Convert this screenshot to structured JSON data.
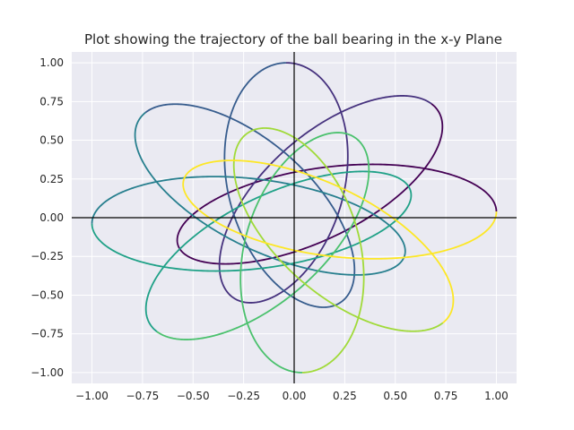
{
  "chart_data": {
    "type": "line",
    "title": "Plot showing the trajectory of the ball bearing in the x-y Plane",
    "xlabel": "",
    "ylabel": "",
    "xlim": [
      -1.1,
      1.1
    ],
    "ylim": [
      -1.07,
      1.07
    ],
    "xticks": [
      -1.0,
      -0.75,
      -0.5,
      -0.25,
      0.0,
      0.25,
      0.5,
      0.75,
      1.0
    ],
    "xtick_labels": [
      "−1.00",
      "−0.75",
      "−0.50",
      "−0.25",
      "0.00",
      "0.25",
      "0.50",
      "0.75",
      "1.00"
    ],
    "yticks": [
      -1.0,
      -0.75,
      -0.5,
      -0.25,
      0.0,
      0.25,
      0.5,
      0.75,
      1.0
    ],
    "ytick_labels": [
      "−1.00",
      "−0.75",
      "−0.50",
      "−0.25",
      "0.00",
      "0.25",
      "0.50",
      "0.75",
      "1.00"
    ],
    "grid": true,
    "axes_lines_through_origin": true,
    "background": "#eaeaf2",
    "trajectory": {
      "ellipse_center": [
        0.2,
        0.04
      ],
      "semi_major": 0.8,
      "semi_minor": 0.25,
      "start": [
        1.0,
        0.0
      ],
      "precession_degrees_per_revolution": 45,
      "revolutions": 8
    },
    "series_colors": [
      "#440154",
      "#46327e",
      "#365c8d",
      "#277f8e",
      "#1fa187",
      "#4ac16d",
      "#a0da39",
      "#fde725"
    ]
  }
}
